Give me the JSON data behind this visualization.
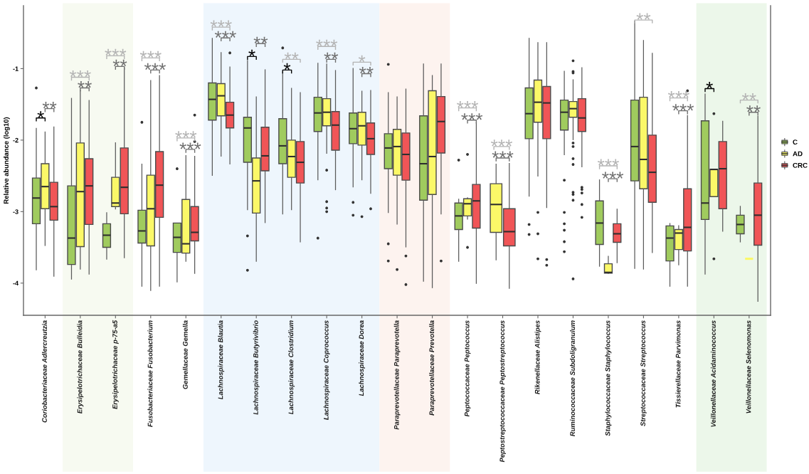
{
  "chart_data": {
    "type": "box",
    "ylabel": "Relative abundance (log10)",
    "categories": [
      "Coriobacteriaceae Adlercreutzia",
      "Erysipelotrichaceae Bulleidia",
      "Erysipelotrichaceae p-75-a5",
      "Fusobacteriaceae Fusobacterium",
      "Gemellaceae Gemella",
      "Lachnospiraceae Blautia",
      "Lachnospiraceae Butyrivibrio",
      "Lachnospiraceae Clostridium",
      "Lachnospiraceae Coprococcus",
      "Lachnospiraceae Dorea",
      "Paraprevotellaceae Paraprevotella",
      "Paraprevotellaceae Prevotella",
      "Peptococcaceae Peptococcus",
      "Peptostreptococcaceae Peptostreptococcus",
      "Rikenellaceae Alistipes",
      "Ruminococcaceae Subdoligranulum",
      "Staphylococcaceae Staphylococcus",
      "Streptococcaceae Streptococcus",
      "Tissierellaceae Parvimonas",
      "Veillonellaceae Acidaminococcus",
      "Veillonellaceae Selenomonas"
    ],
    "ylim": [
      -4.45,
      -0.12
    ],
    "yticks": [
      -4,
      -3,
      -2,
      -1
    ],
    "legend": "right",
    "series": [
      {
        "name": "C",
        "color": "#a0cb5e",
        "boxes": [
          {
            "low": -3.82,
            "q1": -3.17,
            "median": -2.81,
            "q3": -2.53,
            "high": -1.83,
            "outliers": [
              -1.27
            ]
          },
          {
            "low": -3.95,
            "q1": -3.74,
            "median": -3.37,
            "q3": -2.64,
            "high": -1.41
          },
          {
            "low": -3.67,
            "q1": -3.5,
            "median": -3.33,
            "q3": -3.17,
            "high": -3.01
          },
          {
            "low": -4.05,
            "q1": -3.44,
            "median": -3.27,
            "q3": -2.98,
            "high": -2.33,
            "outliers": [
              -1.75
            ]
          },
          {
            "low": -3.99,
            "q1": -3.57,
            "median": -3.36,
            "q3": -3.16,
            "high": -3.16,
            "outliers": [
              -2.4
            ]
          },
          {
            "low": -2.5,
            "q1": -1.72,
            "median": -1.43,
            "q3": -1.2,
            "high": -0.57
          },
          {
            "low": -2.98,
            "q1": -2.31,
            "median": -1.83,
            "q3": -1.68,
            "high": -0.88,
            "outliers": [
              -3.34,
              -3.82
            ]
          },
          {
            "low": -3.04,
            "q1": -2.33,
            "median": -2.08,
            "q3": -1.7,
            "high": -1.04,
            "outliers": [
              -0.71
            ]
          },
          {
            "low": -2.56,
            "q1": -1.88,
            "median": -1.62,
            "q3": -1.4,
            "high": -0.92,
            "outliers": [
              -3.37
            ]
          },
          {
            "low": -2.66,
            "q1": -2.05,
            "median": -1.84,
            "q3": -1.62,
            "high": -0.99,
            "outliers": [
              -2.87,
              -3.05
            ]
          },
          {
            "low": -3.02,
            "q1": -2.4,
            "median": -2.11,
            "q3": -1.91,
            "high": -1.33,
            "outliers": [
              -0.94,
              -3.45,
              -3.69
            ]
          },
          {
            "low": -3.98,
            "q1": -2.84,
            "median": -2.33,
            "q3": -1.66,
            "high": -0.93
          },
          {
            "low": -3.7,
            "q1": -3.25,
            "median": -3.06,
            "q3": -2.88,
            "high": -2.82,
            "outliers": [
              -2.28
            ]
          },
          null,
          {
            "low": -2.79,
            "q1": -1.98,
            "median": -1.63,
            "q3": -1.27,
            "high": -0.57,
            "outliers": [
              -3.18,
              -3.32
            ]
          },
          {
            "low": -2.21,
            "q1": -1.86,
            "median": -1.61,
            "q3": -1.44,
            "high": -1.03,
            "outliers": [
              -2.56,
              -3.01,
              -3.17,
              -3.26,
              -3.42,
              -3.56
            ]
          },
          {
            "low": -3.77,
            "q1": -3.46,
            "median": -3.16,
            "q3": -2.85,
            "high": -2.55
          },
          {
            "low": -3.8,
            "q1": -2.57,
            "median": -2.09,
            "q3": -1.44,
            "high": -0.33
          },
          {
            "low": -4.05,
            "q1": -3.69,
            "median": -3.37,
            "q3": -3.2,
            "high": -3.16
          },
          {
            "low": -3.88,
            "q1": -3.11,
            "median": -2.88,
            "q3": -1.73,
            "high": -1.35
          },
          {
            "low": -3.43,
            "q1": -3.31,
            "median": -3.18,
            "q3": -3.05,
            "high": -2.92
          }
        ]
      },
      {
        "name": "AD",
        "color": "#fbf868",
        "boxes": [
          {
            "low": -3.48,
            "q1": -2.96,
            "median": -2.65,
            "q3": -2.33,
            "high": -1.88
          },
          {
            "low": -3.81,
            "q1": -3.49,
            "median": -2.72,
            "q3": -2.04,
            "high": -1.3
          },
          {
            "low": -2.97,
            "q1": -2.93,
            "median": -2.88,
            "q3": -2.52,
            "high": -2.03
          },
          {
            "low": -4.11,
            "q1": -3.48,
            "median": -2.96,
            "q3": -2.49,
            "high": -1.16
          },
          {
            "low": -3.7,
            "q1": -3.58,
            "median": -3.45,
            "q3": -2.83,
            "high": -2.21
          },
          {
            "low": -2.23,
            "q1": -1.66,
            "median": -1.38,
            "q3": -1.21,
            "high": -0.77
          },
          {
            "low": -3.7,
            "q1": -3.02,
            "median": -2.57,
            "q3": -2.25,
            "high": -1.39
          },
          {
            "low": -2.98,
            "q1": -2.52,
            "median": -2.23,
            "q3": -2.0,
            "high": -1.27
          },
          {
            "low": -2.19,
            "q1": -1.8,
            "median": -1.61,
            "q3": -1.42,
            "high": -0.93,
            "outliers": [
              -2.42,
              -2.86,
              -2.95,
              -3.0
            ]
          },
          {
            "low": -2.56,
            "q1": -2.07,
            "median": -1.8,
            "q3": -1.61,
            "high": -1.31,
            "outliers": [
              -3.07
            ]
          },
          {
            "low": -3.18,
            "q1": -2.49,
            "median": -2.09,
            "q3": -1.85,
            "high": -1.39,
            "outliers": [
              -3.81
            ]
          },
          {
            "low": -4.07,
            "q1": -2.76,
            "median": -2.23,
            "q3": -1.31,
            "high": -1.09
          },
          {
            "low": -3.11,
            "q1": -3.06,
            "median": -2.89,
            "q3": -2.82,
            "high": -2.8,
            "outliers": [
              -2.2,
              -3.5
            ]
          },
          {
            "low": -3.68,
            "q1": -3.29,
            "median": -2.9,
            "q3": -2.61,
            "high": -2.33
          },
          {
            "low": -2.51,
            "q1": -1.75,
            "median": -1.47,
            "q3": -1.16,
            "high": -0.63,
            "outliers": [
              -3.01,
              -3.31,
              -3.66
            ]
          },
          {
            "low": -2.0,
            "q1": -1.68,
            "median": -1.56,
            "q3": -1.46,
            "high": -1.15,
            "outliers": [
              -0.89,
              -1.04,
              -1.06,
              -2.04,
              -2.09,
              -2.26,
              -2.34,
              -2.73,
              -2.76,
              -2.84,
              -3.94
            ]
          },
          {
            "low": -3.87,
            "q1": -3.86,
            "median": -3.85,
            "q3": -3.73,
            "high": -3.62
          },
          {
            "low": -3.81,
            "q1": -2.68,
            "median": -2.27,
            "q3": -1.4,
            "high": -0.6
          },
          {
            "low": -3.75,
            "q1": -3.53,
            "median": -3.3,
            "q3": -3.25,
            "high": -3.19
          },
          {
            "low": -2.79,
            "q1": -2.79,
            "median": -2.41,
            "q3": -2.41,
            "high": -2.41,
            "outliers": [
              -1.63,
              -3.66
            ]
          },
          {
            "low": -3.66,
            "q1": -3.66,
            "median": -3.66,
            "q3": -3.66,
            "high": -3.66
          }
        ]
      },
      {
        "name": "CRC",
        "color": "#f05557",
        "boxes": [
          {
            "low": -3.91,
            "q1": -3.12,
            "median": -2.93,
            "q3": -2.59,
            "high": -1.81
          },
          {
            "low": -3.88,
            "q1": -3.18,
            "median": -2.64,
            "q3": -2.26,
            "high": -1.44
          },
          {
            "low": -3.65,
            "q1": -3.03,
            "median": -2.66,
            "q3": -2.11,
            "high": -0.98
          },
          {
            "low": -4.05,
            "q1": -3.08,
            "median": -2.63,
            "q3": -2.16,
            "high": -1.09
          },
          {
            "low": -3.87,
            "q1": -3.41,
            "median": -3.29,
            "q3": -2.93,
            "high": -2.22,
            "outliers": [
              -1.65,
              -2.02
            ]
          },
          {
            "low": -2.34,
            "q1": -1.83,
            "median": -1.65,
            "q3": -1.47,
            "high": -0.97,
            "outliers": [
              -0.78
            ]
          },
          {
            "low": -3.16,
            "q1": -2.43,
            "median": -2.22,
            "q3": -1.82,
            "high": -1.01
          },
          {
            "low": -3.43,
            "q1": -2.6,
            "median": -2.31,
            "q3": -2.02,
            "high": -1.33
          },
          {
            "low": -2.7,
            "q1": -2.14,
            "median": -1.79,
            "q3": -1.6,
            "high": -1.02
          },
          {
            "low": -2.75,
            "q1": -2.2,
            "median": -1.98,
            "q3": -1.76,
            "high": -1.3,
            "outliers": [
              -2.96
            ]
          },
          {
            "low": -3.5,
            "q1": -2.56,
            "median": -2.2,
            "q3": -1.9,
            "high": -1.28,
            "outliers": [
              -3.62,
              -4.02
            ]
          },
          {
            "low": -3.04,
            "q1": -2.18,
            "median": -1.74,
            "q3": -1.39,
            "high": -0.93,
            "outliers": [
              -3.69
            ]
          },
          {
            "low": -4.01,
            "q1": -3.23,
            "median": -2.85,
            "q3": -2.62,
            "high": -1.75
          },
          {
            "low": -4.08,
            "q1": -3.48,
            "median": -3.28,
            "q3": -2.96,
            "high": -2.32
          },
          {
            "low": -2.95,
            "q1": -1.98,
            "median": -1.48,
            "q3": -1.25,
            "high": -0.63,
            "outliers": [
              -3.67,
              -3.75
            ]
          },
          {
            "low": -2.38,
            "q1": -1.88,
            "median": -1.69,
            "q3": -1.42,
            "high": -0.98,
            "outliers": [
              -2.66,
              -2.69,
              -2.74,
              -2.9,
              -3.08
            ]
          },
          {
            "low": -3.72,
            "q1": -3.43,
            "median": -3.31,
            "q3": -3.17,
            "high": -2.96
          },
          {
            "low": -3.58,
            "q1": -2.87,
            "median": -2.45,
            "q3": -1.93,
            "high": -0.78
          },
          {
            "low": -4.05,
            "q1": -3.55,
            "median": -3.22,
            "q3": -2.68,
            "high": -1.65,
            "outliers": [
              -1.31
            ]
          },
          {
            "low": -3.28,
            "q1": -2.96,
            "median": -2.4,
            "q3": -2.02,
            "high": -1.73
          },
          {
            "low": -4.26,
            "q1": -3.47,
            "median": -3.05,
            "q3": -2.6,
            "high": -1.66
          }
        ]
      }
    ],
    "bands": [
      {
        "axis": "x",
        "from": "Erysipelotrichaceae Bulleidia",
        "to": "Erysipelotrichaceae p-75-a5",
        "color": "#f7faf1"
      },
      {
        "axis": "x",
        "from": "Lachnospiraceae Blautia",
        "to": "Lachnospiraceae Dorea",
        "color": "#eef6fd"
      },
      {
        "axis": "x",
        "from": "Paraprevotellaceae Paraprevotella",
        "to": "Paraprevotellaceae Prevotella",
        "color": "#fdf3ef"
      },
      {
        "axis": "x",
        "from": "Veillonellaceae Acidaminococcus",
        "to": "Veillonellaceae Selenomonas",
        "color": "#ecf7ea"
      }
    ],
    "annotations": [
      "*",
      "**",
      "***",
      "**",
      "***",
      "**",
      "***",
      "***",
      "***",
      "***",
      "***",
      "***",
      "**",
      "*",
      "**",
      "*",
      "***",
      "**",
      "*",
      "**",
      "***",
      "***",
      "***",
      "***",
      "***",
      "***",
      "**",
      "***",
      "***",
      "*",
      "**",
      "**"
    ]
  }
}
